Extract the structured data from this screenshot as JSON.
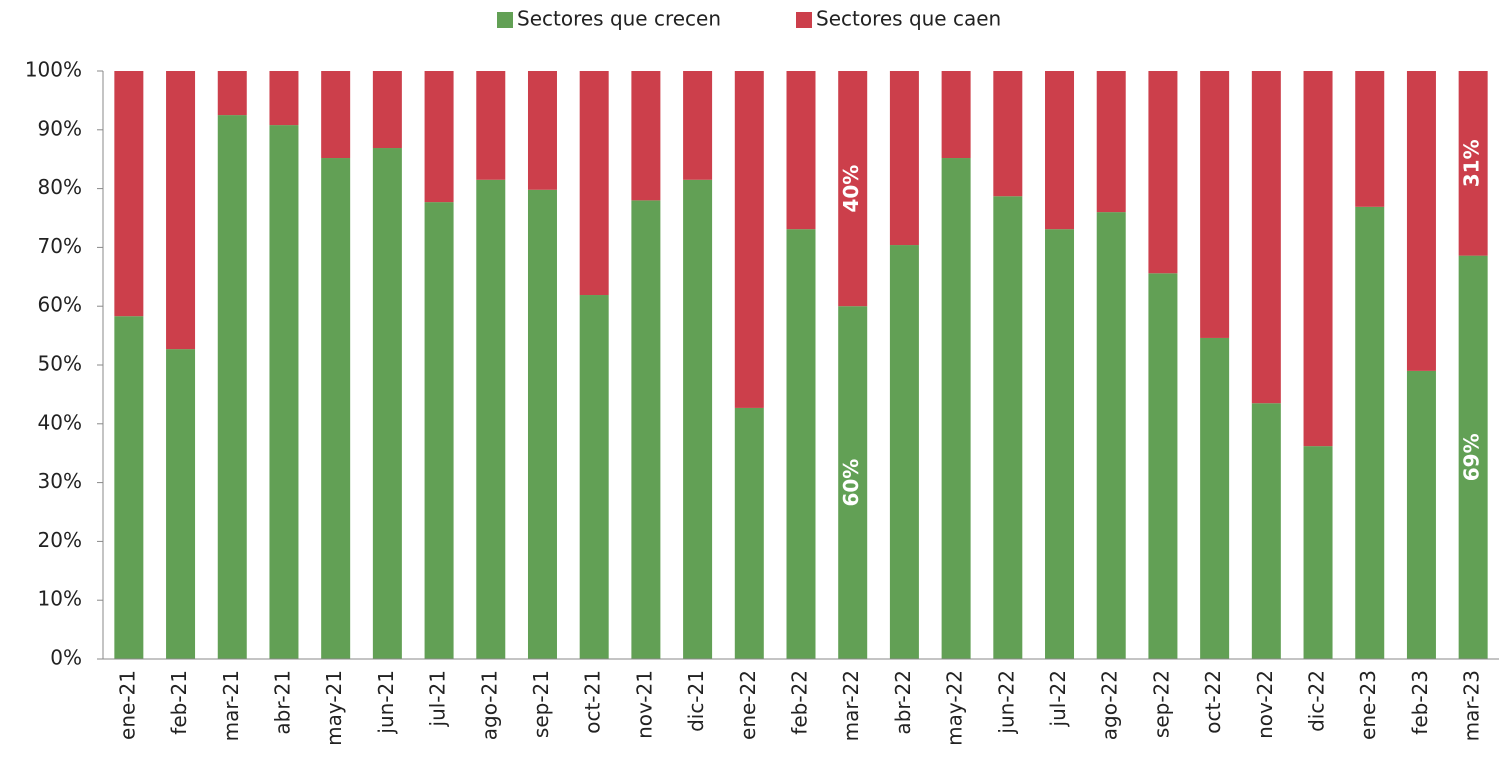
{
  "chart_data": {
    "type": "bar",
    "stacked": true,
    "categories": [
      "ene-21",
      "feb-21",
      "mar-21",
      "abr-21",
      "may-21",
      "jun-21",
      "jul-21",
      "ago-21",
      "sep-21",
      "oct-21",
      "nov-21",
      "dic-21",
      "ene-22",
      "feb-22",
      "mar-22",
      "abr-22",
      "may-22",
      "jun-22",
      "jul-22",
      "ago-22",
      "sep-22",
      "oct-22",
      "nov-22",
      "dic-22",
      "ene-23",
      "feb-23",
      "mar-23"
    ],
    "series": [
      {
        "name": "Sectores que crecen",
        "color": "#62a055",
        "values": [
          58.3,
          52.7,
          92.5,
          90.8,
          85.2,
          86.9,
          77.7,
          81.5,
          79.8,
          61.9,
          78,
          81.5,
          42.7,
          73.1,
          60,
          70.4,
          85.2,
          78.7,
          73.1,
          76,
          65.6,
          54.6,
          43.5,
          36.2,
          76.9,
          49,
          68.6
        ],
        "value_labels": [
          null,
          null,
          null,
          null,
          null,
          null,
          null,
          null,
          null,
          null,
          null,
          null,
          null,
          null,
          "60%",
          null,
          null,
          null,
          null,
          null,
          null,
          null,
          null,
          null,
          null,
          null,
          "69%"
        ]
      },
      {
        "name": "Sectores que caen",
        "color": "#cc3f4b",
        "values": [
          41.7,
          47.3,
          7.5,
          9.2,
          14.8,
          13.1,
          22.3,
          18.5,
          20.2,
          38.1,
          22,
          18.5,
          57.3,
          26.9,
          40,
          29.6,
          14.8,
          21.3,
          26.9,
          24,
          34.4,
          45.4,
          56.5,
          63.8,
          23.1,
          51,
          31.4
        ],
        "value_labels": [
          null,
          null,
          null,
          null,
          null,
          null,
          null,
          null,
          null,
          null,
          null,
          null,
          null,
          null,
          "40%",
          null,
          null,
          null,
          null,
          null,
          null,
          null,
          null,
          null,
          null,
          null,
          "31%"
        ]
      }
    ],
    "ylim": [
      0,
      100
    ],
    "yticks": [
      {
        "value": 0,
        "label": "0%"
      },
      {
        "value": 10,
        "label": "10%"
      },
      {
        "value": 20,
        "label": "20%"
      },
      {
        "value": 30,
        "label": "30%"
      },
      {
        "value": 40,
        "label": "40%"
      },
      {
        "value": 50,
        "label": "50%"
      },
      {
        "value": 60,
        "label": "60%"
      },
      {
        "value": 70,
        "label": "70%"
      },
      {
        "value": 80,
        "label": "80%"
      },
      {
        "value": 90,
        "label": "90%"
      },
      {
        "value": 100,
        "label": "100%"
      }
    ],
    "legend": "top"
  }
}
